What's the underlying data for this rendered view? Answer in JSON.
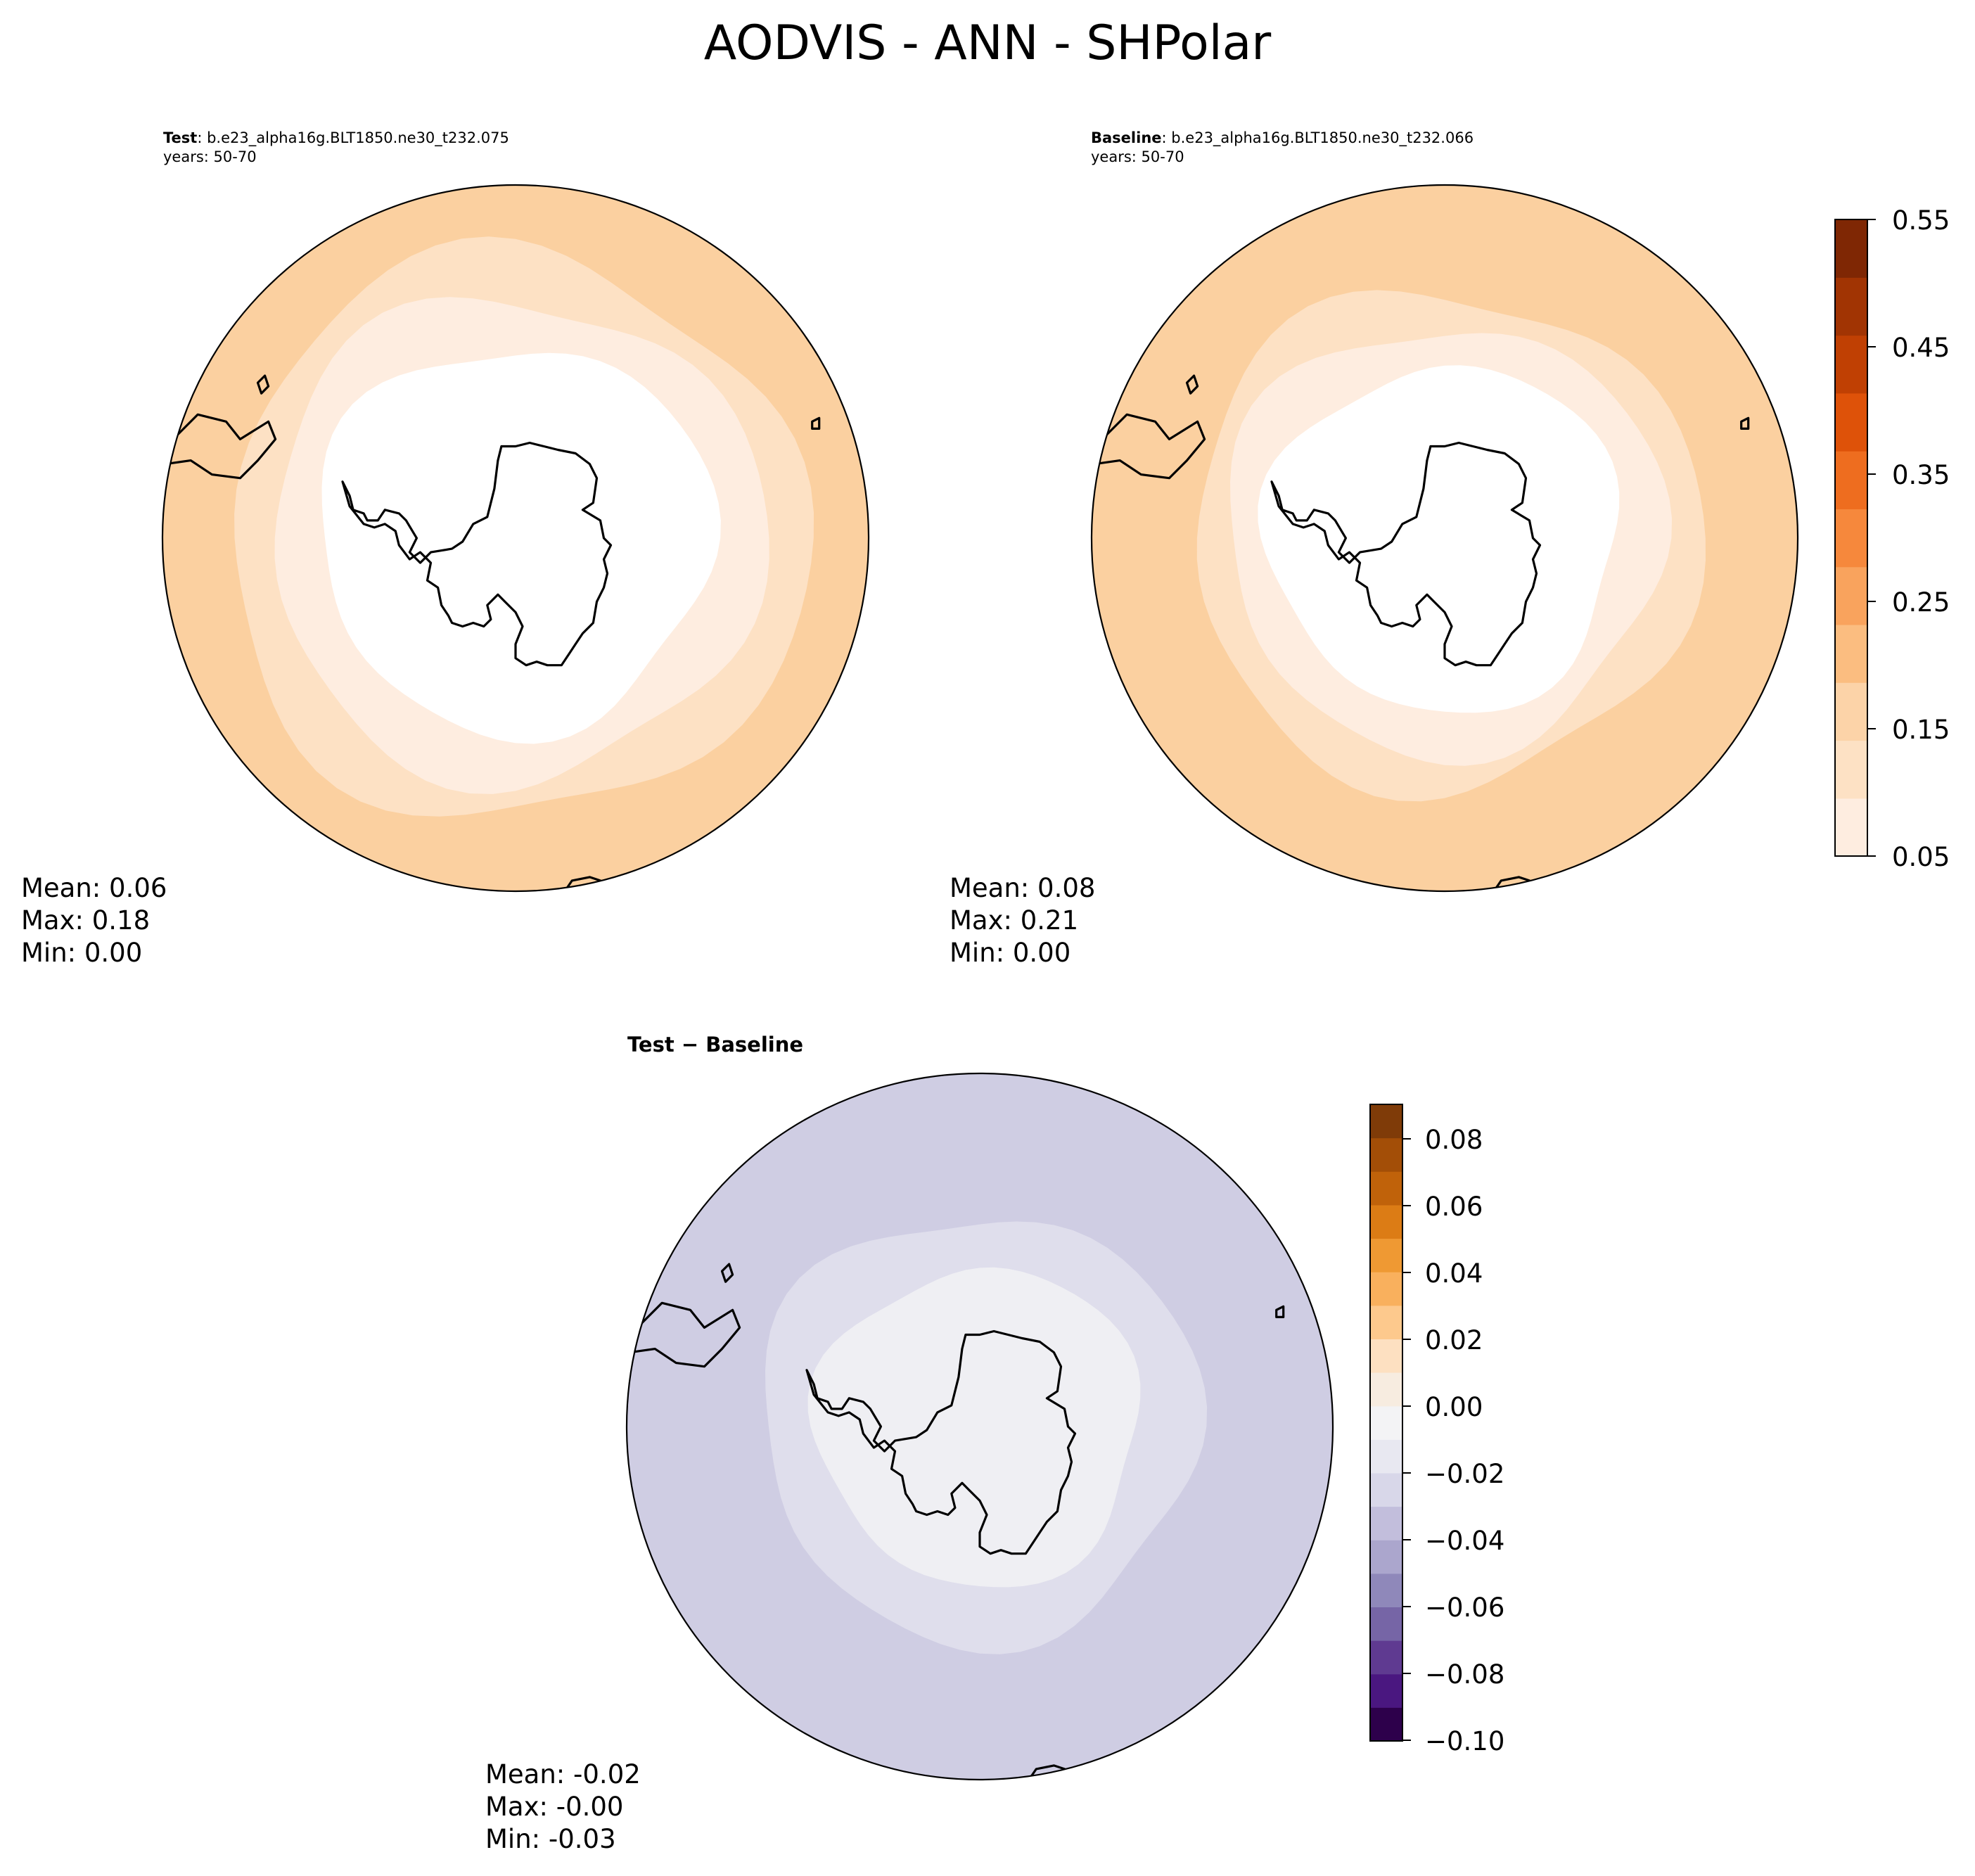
{
  "figure": {
    "title": "AODVIS - ANN - SHPolar"
  },
  "panels": [
    {
      "id": "test",
      "label": "Test",
      "case": "b.e23_alpha16g.BLT1850.ne30_t232.075",
      "years": "years: 50-70",
      "stats": {
        "mean": "Mean:  0.06",
        "max": "Max:  0.18",
        "min": "Min:  0.00"
      },
      "rings": [
        {
          "color": "#fbd0a0",
          "r": 1.0
        },
        {
          "color": "#fde1c4",
          "r": 0.82
        },
        {
          "color": "#feede0",
          "r": 0.7
        },
        {
          "color": "#ffffff",
          "r": 0.56
        }
      ]
    },
    {
      "id": "baseline",
      "label": "Baseline",
      "case": "b.e23_alpha16g.BLT1850.ne30_t232.066",
      "years": "years: 50-70",
      "stats": {
        "mean": "Mean:  0.08",
        "max": "Max:  0.21",
        "min": "Min:  0.00"
      },
      "rings": [
        {
          "color": "#fbd0a0",
          "r": 1.0
        },
        {
          "color": "#fde1c4",
          "r": 0.72
        },
        {
          "color": "#feede0",
          "r": 0.62
        },
        {
          "color": "#ffffff",
          "r": 0.5
        }
      ]
    },
    {
      "id": "diff",
      "label": "Test − Baseline",
      "stats": {
        "mean": "Mean: -0.02",
        "max": "Max: -0.00",
        "min": "Min: -0.03"
      },
      "rings": [
        {
          "color": "#cfcde3",
          "r": 1.0
        },
        {
          "color": "#dfdeec",
          "r": 0.62
        },
        {
          "color": "#efeff3",
          "r": 0.46
        }
      ]
    }
  ],
  "colorbars": [
    {
      "id": "top",
      "ticks": [
        "0.55",
        "0.45",
        "0.35",
        "0.25",
        "0.15",
        "0.05"
      ],
      "bands": [
        "#feede0",
        "#fde1c4",
        "#fcd3a8",
        "#fbbd80",
        "#f9a35d",
        "#f6883c",
        "#ee6d1f",
        "#de5209",
        "#c04003",
        "#a13403",
        "#7f2704"
      ]
    },
    {
      "id": "diff",
      "ticks": [
        "0.08",
        "0.06",
        "0.04",
        "0.02",
        "0.00",
        "−0.02",
        "−0.04",
        "−0.06",
        "−0.08",
        "−0.10"
      ],
      "bands": [
        "#2d004b",
        "#4a1780",
        "#5f3a91",
        "#7665a6",
        "#8f88ba",
        "#aba6cd",
        "#c2bedc",
        "#d8d7e9",
        "#e8e8f1",
        "#f3f3f5",
        "#f7ece0",
        "#fde0c1",
        "#fdc98d",
        "#f9b05d",
        "#ef9933",
        "#dc7c15",
        "#c0620a",
        "#a34e07",
        "#7f3b08"
      ]
    }
  ]
}
